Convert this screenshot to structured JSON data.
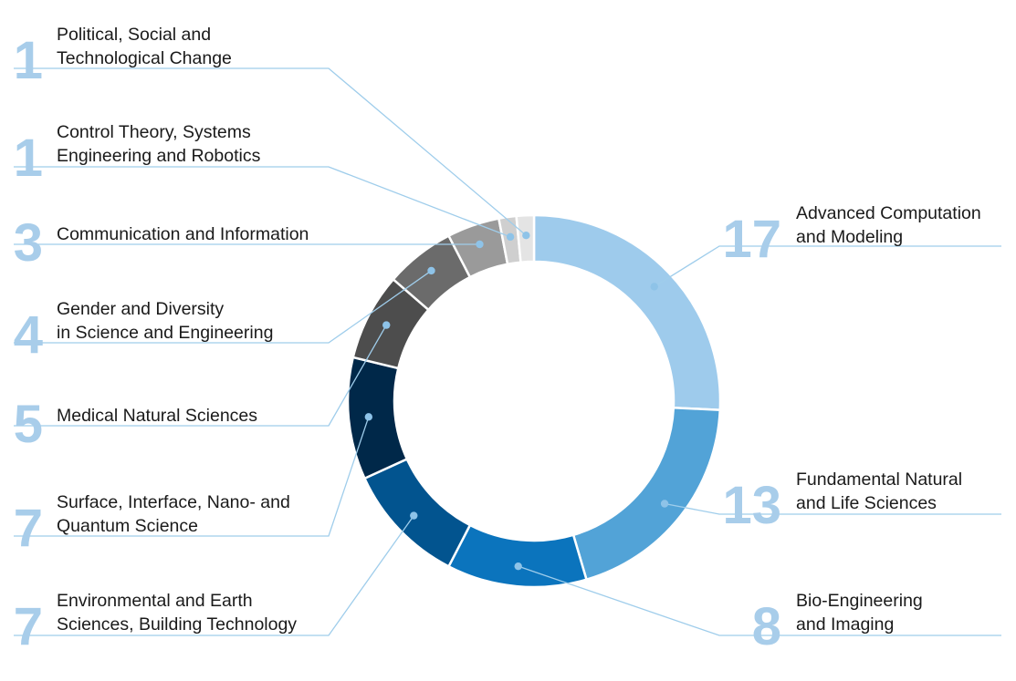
{
  "chart_data": {
    "type": "pie",
    "variant": "donut",
    "title": "",
    "categories": [
      "Advanced Computation and Modeling",
      "Fundamental Natural and Life Sciences",
      "Bio-Engineering and Imaging",
      "Environmental and Earth Sciences, Building Technology",
      "Surface, Interface, Nano- and Quantum Science",
      "Medical Natural Sciences",
      "Gender and Diversity in Science and Engineering",
      "Communication and Information",
      "Control Theory, Systems Engineering and Robotics",
      "Political, Social and Technological Change"
    ],
    "values": [
      17,
      13,
      8,
      7,
      7,
      5,
      4,
      3,
      1,
      1
    ],
    "colors": [
      "#9ecbec",
      "#52a3d7",
      "#0b74bd",
      "#02548f",
      "#002849",
      "#4d4d4d",
      "#6b6b6b",
      "#9a9a9a",
      "#cfcfcf",
      "#e4e4e4"
    ],
    "label_lines": [
      [
        "Advanced Computation",
        "and Modeling"
      ],
      [
        "Fundamental Natural",
        "and Life Sciences"
      ],
      [
        "Bio-Engineering",
        "and Imaging"
      ],
      [
        "Environmental and Earth",
        "Sciences, Building Technology"
      ],
      [
        "Surface, Interface, Nano- and",
        "Quantum Science"
      ],
      [
        "Medical Natural Sciences"
      ],
      [
        "Gender and Diversity",
        "in Science and Engineering"
      ],
      [
        "Communication and Information"
      ],
      [
        "Control Theory, Systems",
        "Engineering and Robotics"
      ],
      [
        "Political, Social and",
        "Technological Change"
      ]
    ],
    "number_color": "#a8cdea",
    "leader_color": "#9fcdeb",
    "dot_color": "#8ec3e8",
    "legend": "none"
  }
}
